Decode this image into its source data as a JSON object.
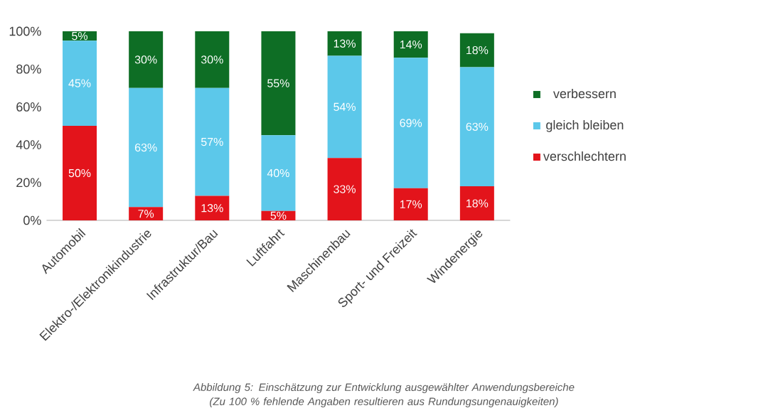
{
  "chart_data": {
    "type": "bar",
    "stacked": true,
    "categories": [
      "Automobil",
      "Elektro-/Elektronikindustrie",
      "Infrastruktur/Bau",
      "Luftfahrt",
      "Maschinenbau",
      "Sport- und Freizeit",
      "Windenergie"
    ],
    "series": [
      {
        "name": "verschlechtern",
        "color": "#e3141b",
        "values": [
          50,
          7,
          13,
          5,
          33,
          17,
          18
        ],
        "value_labels": [
          "50%",
          "7%",
          "13%",
          "5%",
          "33%",
          "17%",
          "18%"
        ]
      },
      {
        "name": "gleich bleiben",
        "color": "#5cc8ea",
        "values": [
          45,
          63,
          57,
          40,
          54,
          69,
          63
        ],
        "value_labels": [
          "45%",
          "63%",
          "57%",
          "40%",
          "54%",
          "69%",
          "63%"
        ]
      },
      {
        "name": "verbessern",
        "color": "#0e6e25",
        "values": [
          5,
          30,
          30,
          55,
          13,
          14,
          18
        ],
        "value_labels": [
          "5%",
          "30%",
          "30%",
          "55%",
          "13%",
          "14%",
          "18%"
        ]
      }
    ],
    "ylim": [
      0,
      100
    ],
    "yticks": [
      {
        "value": 0,
        "label": "0%"
      },
      {
        "value": 20,
        "label": "20%"
      },
      {
        "value": 40,
        "label": "40%"
      },
      {
        "value": 60,
        "label": "60%"
      },
      {
        "value": 80,
        "label": "80%"
      },
      {
        "value": 100,
        "label": "100%"
      }
    ],
    "legend": "right",
    "grid": false,
    "annotations": [
      "Abbildung 5: Einschätzung zur Entwicklung ausgewählter Anwendungsbereiche (Zu 100 % fehlende Angaben resultieren aus Rundungsungenauigkeiten)"
    ]
  }
}
